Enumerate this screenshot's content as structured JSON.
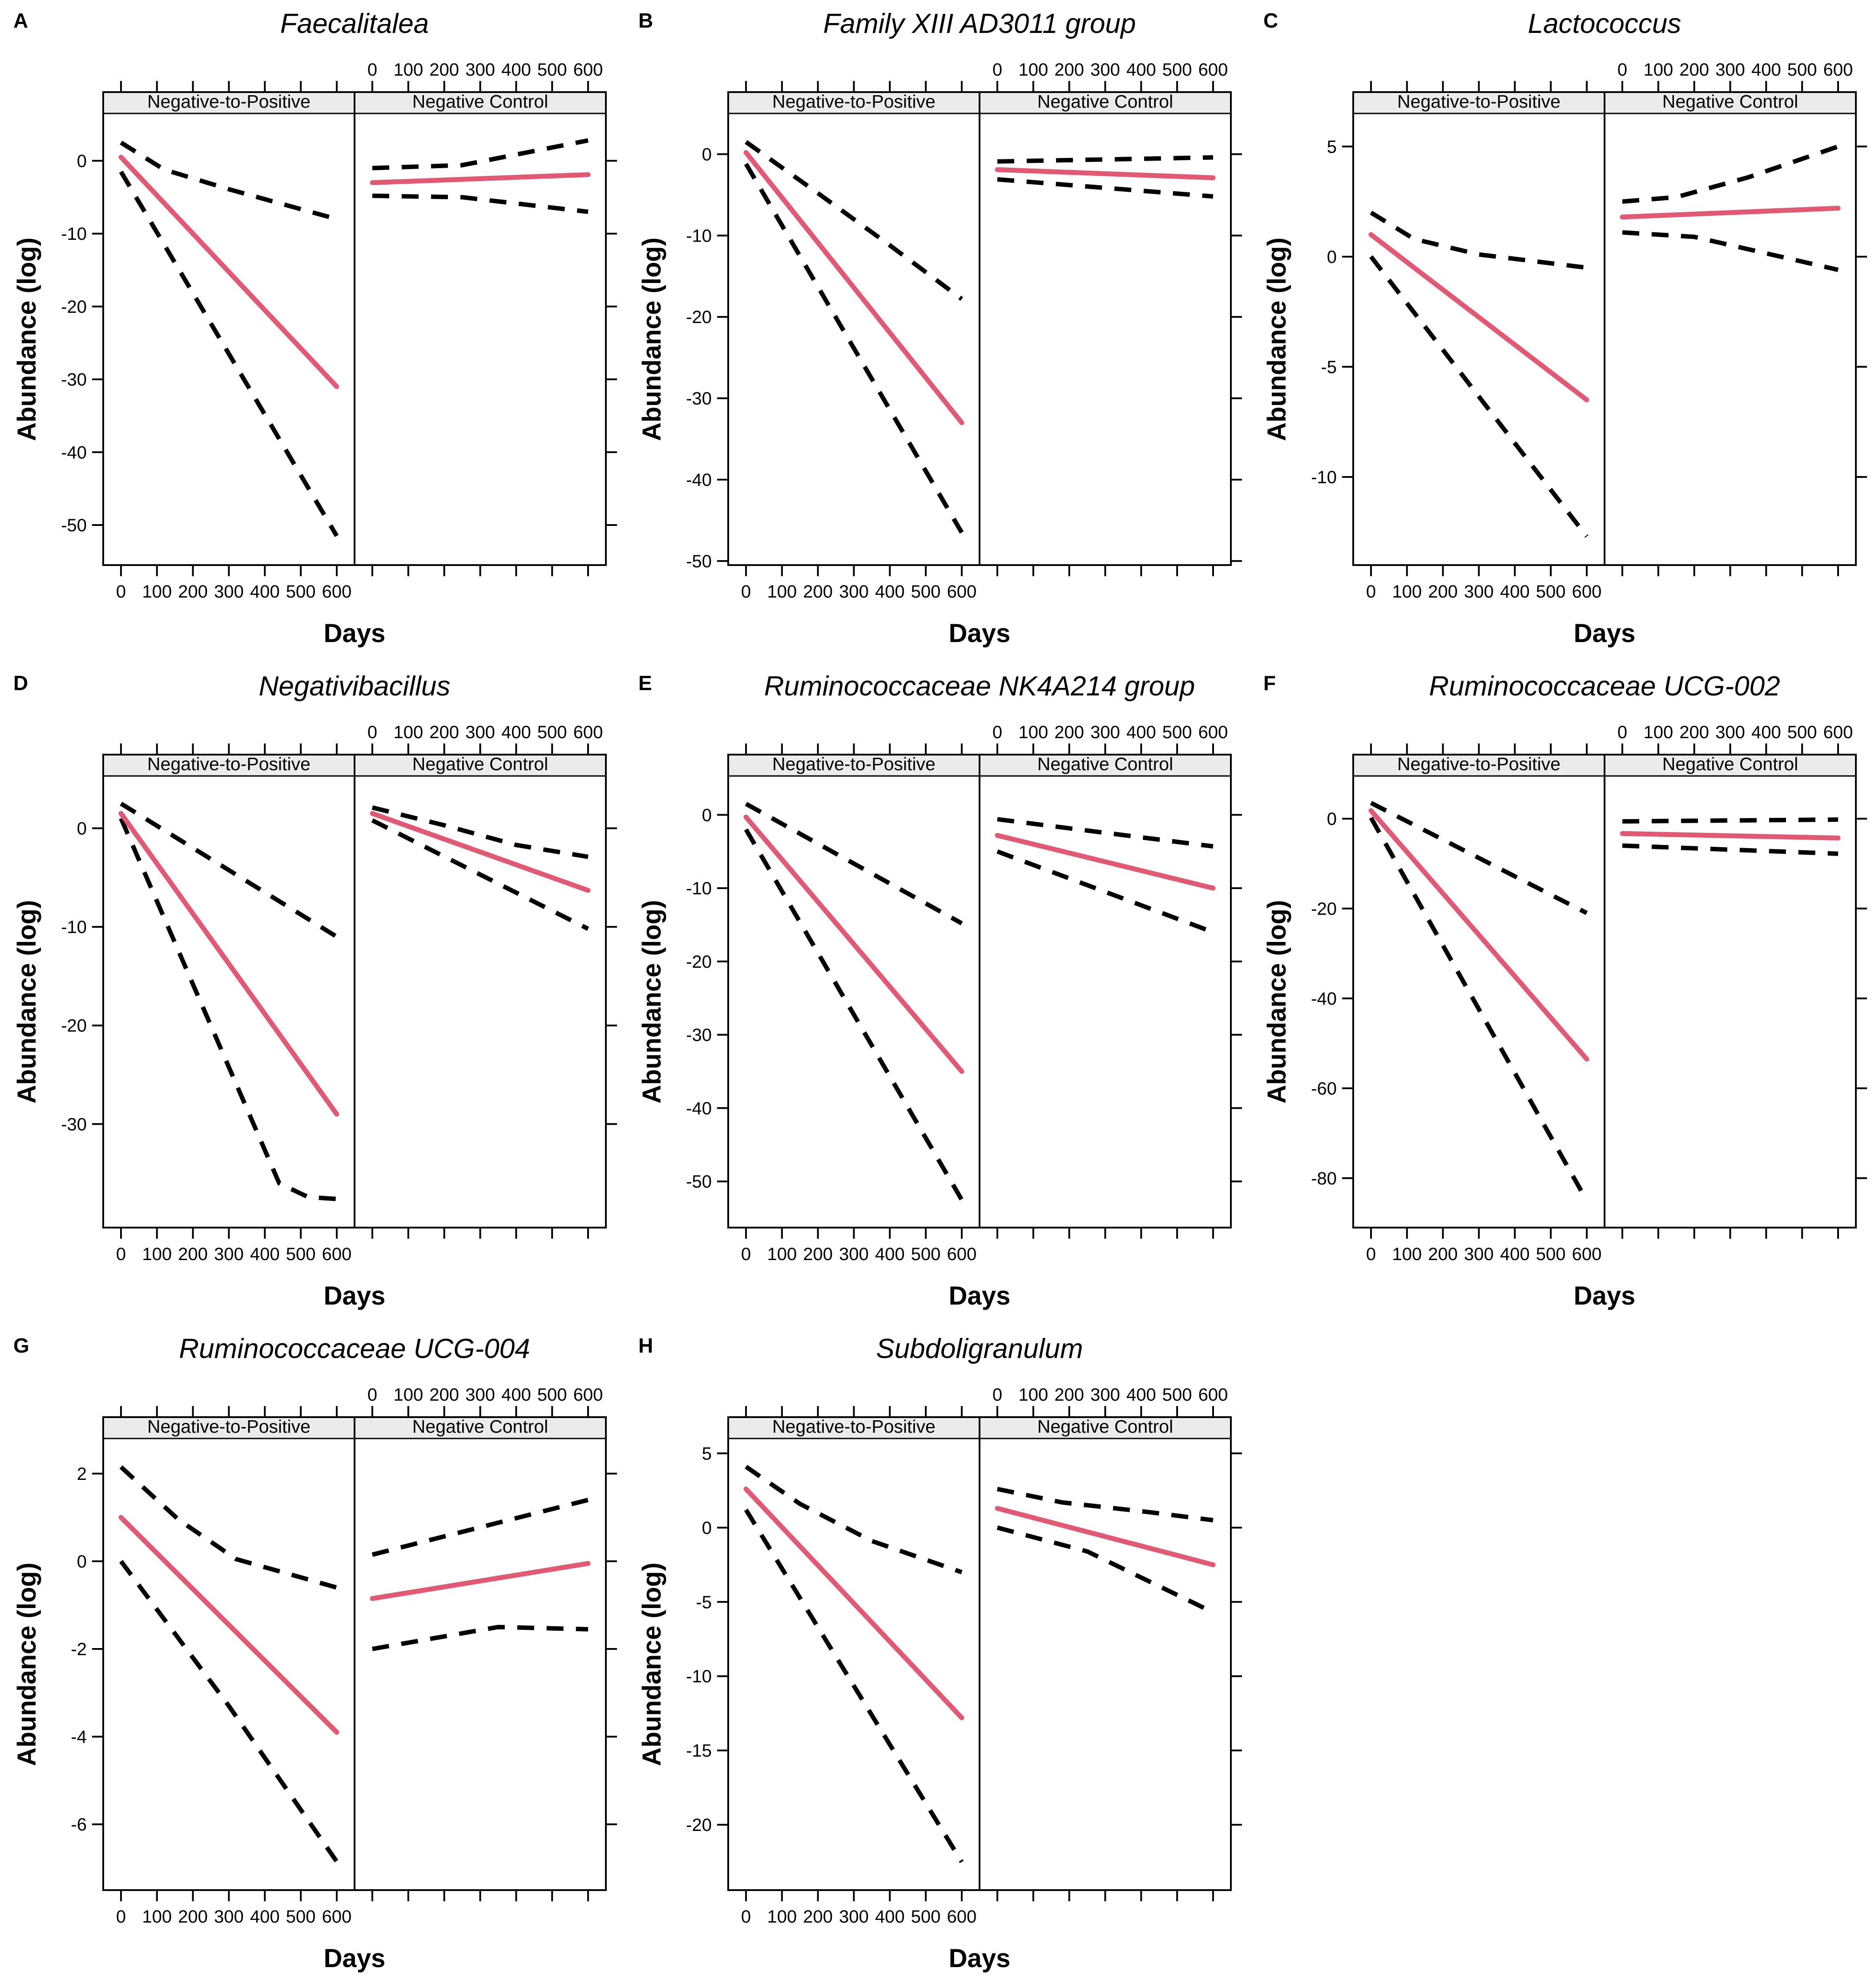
{
  "figure": {
    "xlabel": "Days",
    "ylabel": "Abundance (log)",
    "strip_labels": [
      "Negative-to-Positive",
      "Negative Control"
    ],
    "xticks": [
      0,
      100,
      200,
      300,
      400,
      500,
      600
    ],
    "colors": {
      "fit_line": "#df5a72",
      "ci_line": "#000000",
      "strip_bg": "#ececec",
      "border": "#000000",
      "background": "#ffffff"
    }
  },
  "chart_data": [
    {
      "label": "A",
      "title": "Faecalitalea",
      "type": "line",
      "xlabel": "Days",
      "ylabel": "Abundance (log)",
      "xlim": [
        0,
        600
      ],
      "ylim": [
        -55.5,
        6.5
      ],
      "yticks": [
        0,
        -10,
        -20,
        -30,
        -40,
        -50
      ],
      "groups": [
        {
          "name": "Negative-to-Positive",
          "fit": [
            [
              0,
              0.5
            ],
            [
              600,
              -31
            ]
          ],
          "upper_ci": [
            [
              0,
              2.5
            ],
            [
              120,
              -1.2
            ],
            [
              300,
              -3.9
            ],
            [
              600,
              -8
            ]
          ],
          "lower_ci": [
            [
              0,
              -1.5
            ],
            [
              600,
              -51.5
            ]
          ]
        },
        {
          "name": "Negative Control",
          "fit": [
            [
              0,
              -3
            ],
            [
              600,
              -1.9
            ]
          ],
          "upper_ci": [
            [
              0,
              -1
            ],
            [
              250,
              -0.6
            ],
            [
              600,
              2.8
            ]
          ],
          "lower_ci": [
            [
              0,
              -4.8
            ],
            [
              250,
              -5
            ],
            [
              600,
              -7
            ]
          ]
        }
      ]
    },
    {
      "label": "B",
      "title": "Family XIII AD3011 group",
      "type": "line",
      "xlabel": "Days",
      "ylabel": "Abundance (log)",
      "xlim": [
        0,
        600
      ],
      "ylim": [
        -50.5,
        5
      ],
      "yticks": [
        0,
        -10,
        -20,
        -30,
        -40,
        -50
      ],
      "groups": [
        {
          "name": "Negative-to-Positive",
          "fit": [
            [
              0,
              0.2
            ],
            [
              600,
              -33
            ]
          ],
          "upper_ci": [
            [
              0,
              1.5
            ],
            [
              200,
              -4.8
            ],
            [
              400,
              -11.2
            ],
            [
              600,
              -17.8
            ]
          ],
          "lower_ci": [
            [
              0,
              -1.2
            ],
            [
              600,
              -46.5
            ]
          ]
        },
        {
          "name": "Negative Control",
          "fit": [
            [
              0,
              -1.9
            ],
            [
              600,
              -2.9
            ]
          ],
          "upper_ci": [
            [
              0,
              -0.9
            ],
            [
              600,
              -0.4
            ]
          ],
          "lower_ci": [
            [
              0,
              -3.1
            ],
            [
              600,
              -5.2
            ]
          ]
        }
      ]
    },
    {
      "label": "C",
      "title": "Lactococcus",
      "type": "line",
      "xlabel": "Days",
      "ylabel": "Abundance (log)",
      "xlim": [
        0,
        600
      ],
      "ylim": [
        -14,
        6.5
      ],
      "yticks": [
        5,
        0,
        -5,
        -10
      ],
      "groups": [
        {
          "name": "Negative-to-Positive",
          "fit": [
            [
              0,
              1
            ],
            [
              600,
              -6.5
            ]
          ],
          "upper_ci": [
            [
              0,
              2
            ],
            [
              120,
              0.8
            ],
            [
              300,
              0.1
            ],
            [
              450,
              -0.2
            ],
            [
              600,
              -0.5
            ]
          ],
          "lower_ci": [
            [
              0,
              0
            ],
            [
              600,
              -12.7
            ]
          ]
        },
        {
          "name": "Negative Control",
          "fit": [
            [
              0,
              1.8
            ],
            [
              600,
              2.2
            ]
          ],
          "upper_ci": [
            [
              0,
              2.5
            ],
            [
              150,
              2.7
            ],
            [
              350,
              3.6
            ],
            [
              600,
              5
            ]
          ],
          "lower_ci": [
            [
              0,
              1.1
            ],
            [
              200,
              0.9
            ],
            [
              600,
              -0.6
            ]
          ]
        }
      ]
    },
    {
      "label": "D",
      "title": "Negativibacillus",
      "type": "line",
      "xlabel": "Days",
      "ylabel": "Abundance (log)",
      "xlim": [
        0,
        600
      ],
      "ylim": [
        -40.5,
        5.3
      ],
      "yticks": [
        0,
        -10,
        -20,
        -30
      ],
      "groups": [
        {
          "name": "Negative-to-Positive",
          "fit": [
            [
              0,
              1.5
            ],
            [
              600,
              -29
            ]
          ],
          "upper_ci": [
            [
              0,
              2.5
            ],
            [
              600,
              -11
            ]
          ],
          "lower_ci": [
            [
              0,
              1
            ],
            [
              440,
              -36
            ],
            [
              520,
              -37.4
            ],
            [
              600,
              -37.6
            ]
          ]
        },
        {
          "name": "Negative Control",
          "fit": [
            [
              0,
              1.5
            ],
            [
              600,
              -6.3
            ]
          ],
          "upper_ci": [
            [
              0,
              2.1
            ],
            [
              200,
              0.3
            ],
            [
              400,
              -1.7
            ],
            [
              600,
              -2.9
            ]
          ],
          "lower_ci": [
            [
              0,
              0.8
            ],
            [
              600,
              -10.2
            ]
          ]
        }
      ]
    },
    {
      "label": "E",
      "title": "Ruminococcaceae NK4A214 group",
      "type": "line",
      "xlabel": "Days",
      "ylabel": "Abundance (log)",
      "xlim": [
        0,
        600
      ],
      "ylim": [
        -56.3,
        5.3
      ],
      "yticks": [
        0,
        -10,
        -20,
        -30,
        -40,
        -50
      ],
      "groups": [
        {
          "name": "Negative-to-Positive",
          "fit": [
            [
              0,
              -0.3
            ],
            [
              600,
              -35
            ]
          ],
          "upper_ci": [
            [
              0,
              1.5
            ],
            [
              600,
              -14.8
            ]
          ],
          "lower_ci": [
            [
              0,
              -2
            ],
            [
              600,
              -52.5
            ]
          ]
        },
        {
          "name": "Negative Control",
          "fit": [
            [
              0,
              -2.8
            ],
            [
              600,
              -10
            ]
          ],
          "upper_ci": [
            [
              0,
              -0.6
            ],
            [
              600,
              -4.3
            ]
          ],
          "lower_ci": [
            [
              0,
              -5
            ],
            [
              600,
              -16
            ]
          ]
        }
      ]
    },
    {
      "label": "F",
      "title": "Ruminococcaceae UCG-002",
      "type": "line",
      "xlabel": "Days",
      "ylabel": "Abundance (log)",
      "xlim": [
        0,
        600
      ],
      "ylim": [
        -91,
        9.5
      ],
      "yticks": [
        0,
        -20,
        -40,
        -60,
        -80
      ],
      "groups": [
        {
          "name": "Negative-to-Positive",
          "fit": [
            [
              0,
              1.8
            ],
            [
              600,
              -53.5
            ]
          ],
          "upper_ci": [
            [
              0,
              3.5
            ],
            [
              600,
              -21
            ]
          ],
          "lower_ci": [
            [
              0,
              0.2
            ],
            [
              600,
              -85
            ]
          ]
        },
        {
          "name": "Negative Control",
          "fit": [
            [
              0,
              -3.3
            ],
            [
              600,
              -4.3
            ]
          ],
          "upper_ci": [
            [
              0,
              -0.6
            ],
            [
              600,
              -0.2
            ]
          ],
          "lower_ci": [
            [
              0,
              -6
            ],
            [
              600,
              -7.8
            ]
          ]
        }
      ]
    },
    {
      "label": "G",
      "title": "Ruminococcaceae UCG-004",
      "type": "line",
      "xlabel": "Days",
      "ylabel": "Abundance (log)",
      "xlim": [
        0,
        600
      ],
      "ylim": [
        -7.5,
        2.8
      ],
      "yticks": [
        2,
        0,
        -2,
        -4,
        -6
      ],
      "groups": [
        {
          "name": "Negative-to-Positive",
          "fit": [
            [
              0,
              1
            ],
            [
              600,
              -3.9
            ]
          ],
          "upper_ci": [
            [
              0,
              2.15
            ],
            [
              160,
              0.95
            ],
            [
              320,
              0.05
            ],
            [
              600,
              -0.6
            ]
          ],
          "lower_ci": [
            [
              0,
              0
            ],
            [
              300,
              -3.3
            ],
            [
              600,
              -6.85
            ]
          ]
        },
        {
          "name": "Negative Control",
          "fit": [
            [
              0,
              -0.85
            ],
            [
              600,
              -0.05
            ]
          ],
          "upper_ci": [
            [
              0,
              0.15
            ],
            [
              600,
              1.4
            ]
          ],
          "lower_ci": [
            [
              0,
              -2
            ],
            [
              350,
              -1.5
            ],
            [
              600,
              -1.55
            ]
          ]
        }
      ]
    },
    {
      "label": "H",
      "title": "Subdoligranulum",
      "type": "line",
      "xlabel": "Days",
      "ylabel": "Abundance (log)",
      "xlim": [
        0,
        600
      ],
      "ylim": [
        -24.4,
        6
      ],
      "yticks": [
        5,
        0,
        -5,
        -10,
        -15,
        -20
      ],
      "groups": [
        {
          "name": "Negative-to-Positive",
          "fit": [
            [
              0,
              2.6
            ],
            [
              600,
              -12.8
            ]
          ],
          "upper_ci": [
            [
              0,
              4.1
            ],
            [
              150,
              1.6
            ],
            [
              350,
              -0.9
            ],
            [
              600,
              -3
            ]
          ],
          "lower_ci": [
            [
              0,
              1.2
            ],
            [
              600,
              -22.5
            ]
          ]
        },
        {
          "name": "Negative Control",
          "fit": [
            [
              0,
              1.3
            ],
            [
              600,
              -2.5
            ]
          ],
          "upper_ci": [
            [
              0,
              2.6
            ],
            [
              180,
              1.7
            ],
            [
              420,
              1.05
            ],
            [
              600,
              0.5
            ]
          ],
          "lower_ci": [
            [
              0,
              0
            ],
            [
              250,
              -1.6
            ],
            [
              600,
              -5.7
            ]
          ]
        }
      ]
    }
  ]
}
